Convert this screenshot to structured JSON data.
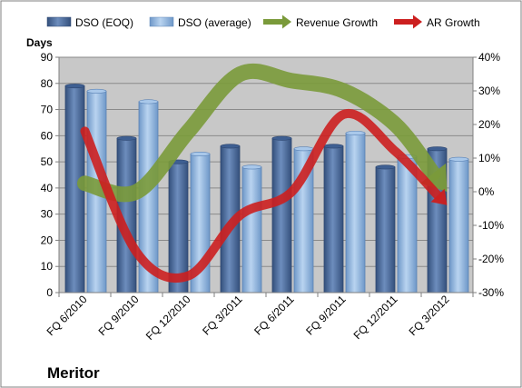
{
  "chart_data": {
    "type": "bar",
    "categories": [
      "FQ 6/2010",
      "FQ 9/2010",
      "FQ 12/2010",
      "FQ 3/2011",
      "FQ 6/2011",
      "FQ 9/2011",
      "FQ 12/2011",
      "FQ 3/2012"
    ],
    "series": [
      {
        "name": "DSO (EOQ)",
        "type": "bar",
        "axis": "left",
        "values": [
          79,
          59,
          50,
          56,
          59,
          56,
          48,
          55
        ]
      },
      {
        "name": "DSO (average)",
        "type": "bar",
        "axis": "left",
        "values": [
          77,
          73,
          53,
          48,
          55,
          61,
          52,
          51
        ]
      },
      {
        "name": "Revenue Growth",
        "type": "line",
        "axis": "right",
        "values": [
          0.025,
          0.0,
          0.18,
          0.35,
          0.33,
          0.3,
          0.2,
          0.0
        ]
      },
      {
        "name": "AR Growth",
        "type": "line",
        "axis": "right",
        "values": [
          0.18,
          -0.18,
          -0.25,
          -0.07,
          0.0,
          0.23,
          0.12,
          -0.04
        ]
      }
    ],
    "ylabel": "Days",
    "ylim": [
      0,
      90
    ],
    "yticks": [
      0,
      10,
      20,
      30,
      40,
      50,
      60,
      70,
      80,
      90
    ],
    "y2lim": [
      -0.3,
      0.4
    ],
    "y2ticks": [
      -0.3,
      -0.2,
      -0.1,
      0,
      0.1,
      0.2,
      0.3,
      0.4
    ],
    "y2tick_labels": [
      "-30%",
      "-20%",
      "-10%",
      "0%",
      "10%",
      "20%",
      "30%",
      "40%"
    ],
    "legend_position": "top",
    "grid": true,
    "colors": {
      "dso_eoq": "#4f6fa0",
      "dso_avg": "#8fb4de",
      "revenue": "#7a9a3a",
      "ar": "#cc1f1f",
      "plot_bg": "#c8c8c8"
    }
  },
  "brand": "Meritor"
}
